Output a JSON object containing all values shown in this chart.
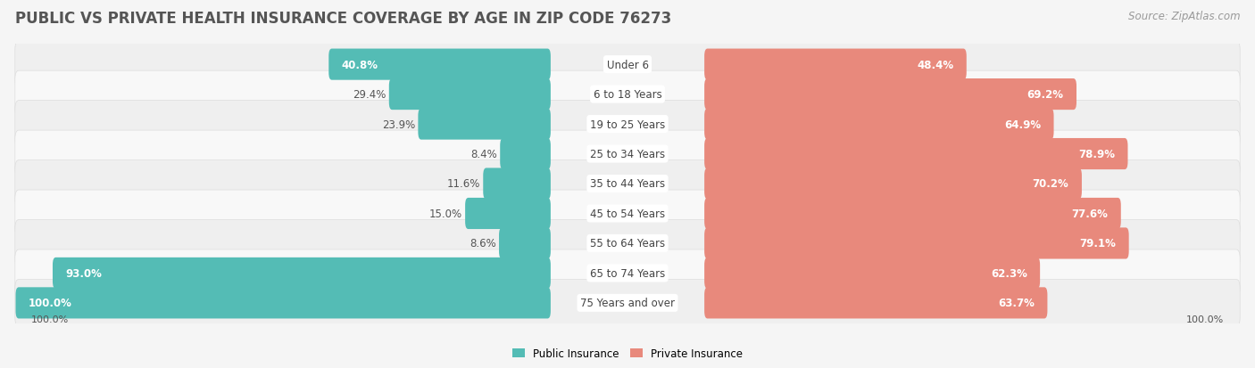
{
  "title": "PUBLIC VS PRIVATE HEALTH INSURANCE COVERAGE BY AGE IN ZIP CODE 76273",
  "source": "Source: ZipAtlas.com",
  "categories": [
    "Under 6",
    "6 to 18 Years",
    "19 to 25 Years",
    "25 to 34 Years",
    "35 to 44 Years",
    "45 to 54 Years",
    "55 to 64 Years",
    "65 to 74 Years",
    "75 Years and over"
  ],
  "public_values": [
    40.8,
    29.4,
    23.9,
    8.4,
    11.6,
    15.0,
    8.6,
    93.0,
    100.0
  ],
  "private_values": [
    48.4,
    69.2,
    64.9,
    78.9,
    70.2,
    77.6,
    79.1,
    62.3,
    63.7
  ],
  "public_color": "#54bcb5",
  "private_color": "#e8897c",
  "title_color": "#555555",
  "source_color": "#999999",
  "outside_label_color": "#555555",
  "inside_label_color": "#ffffff",
  "row_colors": [
    "#efefef",
    "#f8f8f8"
  ],
  "bg_color": "#f5f5f5",
  "center_label_bg": "#ffffff",
  "title_fontsize": 12,
  "label_fontsize": 8.5,
  "value_fontsize": 8.5,
  "source_fontsize": 8.5,
  "axis_label_fontsize": 8,
  "bar_height": 0.55,
  "inside_threshold_public": 30.0,
  "inside_threshold_private": 30.0
}
